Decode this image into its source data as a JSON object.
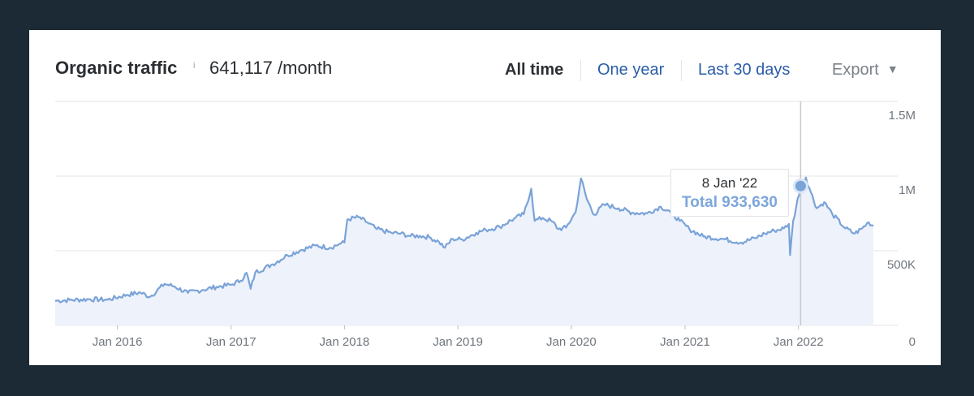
{
  "header": {
    "title": "Organic traffic",
    "info_mark": "i",
    "metric_value": "641,117 /month"
  },
  "ranges": [
    {
      "label": "All time",
      "active": true
    },
    {
      "label": "One year",
      "active": false
    },
    {
      "label": "Last 30 days",
      "active": false
    }
  ],
  "export": {
    "label": "Export",
    "icon": "caret-down-icon"
  },
  "tooltip": {
    "date": "8 Jan '22",
    "total": "Total 933,630"
  },
  "colors": {
    "line": "#7aa3d8",
    "area": "#eef2fb",
    "grid": "#e3e6ea",
    "crosshair": "#c5cad1",
    "axis_text": "#6f767d",
    "link": "#2a5da8"
  },
  "chart_data": {
    "type": "area",
    "title": "Organic traffic",
    "x_type": "date",
    "x_ticks": [
      "Jan 2016",
      "Jan 2017",
      "Jan 2018",
      "Jan 2019",
      "Jan 2020",
      "Jan 2021",
      "Jan 2022"
    ],
    "y_ticks": [
      "0",
      "500K",
      "1M",
      "1.5M"
    ],
    "ylim": [
      0,
      1500000
    ],
    "y_axis_side": "right",
    "grid": true,
    "highlight": {
      "date": "2022-01-08",
      "value": 933630
    },
    "series": [
      {
        "points": [
          [
            "2015-06-15",
            165000
          ],
          [
            "2015-08-01",
            170000
          ],
          [
            "2015-10-01",
            175000
          ],
          [
            "2015-12-01",
            172000
          ],
          [
            "2016-02-01",
            205000
          ],
          [
            "2016-03-15",
            220000
          ],
          [
            "2016-04-15",
            192000
          ],
          [
            "2016-06-01",
            278000
          ],
          [
            "2016-07-01",
            262000
          ],
          [
            "2016-08-15",
            218000
          ],
          [
            "2016-10-01",
            238000
          ],
          [
            "2016-11-15",
            258000
          ],
          [
            "2017-01-01",
            272000
          ],
          [
            "2017-02-01",
            300000
          ],
          [
            "2017-02-20",
            352000
          ],
          [
            "2017-03-05",
            245000
          ],
          [
            "2017-03-20",
            355000
          ],
          [
            "2017-05-15",
            410000
          ],
          [
            "2017-07-01",
            470000
          ],
          [
            "2017-08-15",
            505000
          ],
          [
            "2017-10-01",
            535000
          ],
          [
            "2017-11-15",
            520000
          ],
          [
            "2017-12-15",
            545000
          ],
          [
            "2018-01-01",
            555000
          ],
          [
            "2018-01-10",
            710000
          ],
          [
            "2018-02-15",
            725000
          ],
          [
            "2018-03-15",
            690000
          ],
          [
            "2018-04-15",
            645000
          ],
          [
            "2018-06-01",
            620000
          ],
          [
            "2018-07-01",
            615000
          ],
          [
            "2018-08-01",
            598000
          ],
          [
            "2018-09-01",
            600000
          ],
          [
            "2018-10-01",
            590000
          ],
          [
            "2018-11-01",
            560000
          ],
          [
            "2018-11-20",
            520000
          ],
          [
            "2018-12-15",
            580000
          ],
          [
            "2019-01-15",
            575000
          ],
          [
            "2019-03-01",
            620000
          ],
          [
            "2019-04-01",
            640000
          ],
          [
            "2019-05-15",
            660000
          ],
          [
            "2019-07-01",
            715000
          ],
          [
            "2019-08-01",
            745000
          ],
          [
            "2019-08-25",
            915000
          ],
          [
            "2019-09-05",
            700000
          ],
          [
            "2019-10-01",
            720000
          ],
          [
            "2019-11-01",
            695000
          ],
          [
            "2019-11-20",
            645000
          ],
          [
            "2019-12-15",
            655000
          ],
          [
            "2020-01-15",
            760000
          ],
          [
            "2020-02-01",
            985000
          ],
          [
            "2020-02-20",
            845000
          ],
          [
            "2020-03-15",
            740000
          ],
          [
            "2020-04-15",
            810000
          ],
          [
            "2020-06-01",
            785000
          ],
          [
            "2020-07-15",
            755000
          ],
          [
            "2020-09-01",
            750000
          ],
          [
            "2020-10-15",
            795000
          ],
          [
            "2020-11-15",
            760000
          ],
          [
            "2020-12-15",
            700000
          ],
          [
            "2021-01-15",
            645000
          ],
          [
            "2021-03-01",
            595000
          ],
          [
            "2021-05-01",
            580000
          ],
          [
            "2021-07-01",
            555000
          ],
          [
            "2021-08-15",
            585000
          ],
          [
            "2021-09-15",
            615000
          ],
          [
            "2021-10-15",
            635000
          ],
          [
            "2021-11-15",
            650000
          ],
          [
            "2021-12-01",
            680000
          ],
          [
            "2021-12-05",
            470000
          ],
          [
            "2021-12-15",
            700000
          ],
          [
            "2022-01-08",
            933630
          ],
          [
            "2022-01-25",
            990000
          ],
          [
            "2022-02-10",
            890000
          ],
          [
            "2022-03-01",
            785000
          ],
          [
            "2022-03-25",
            825000
          ],
          [
            "2022-04-20",
            745000
          ],
          [
            "2022-06-01",
            650000
          ],
          [
            "2022-07-01",
            615000
          ],
          [
            "2022-07-25",
            650000
          ],
          [
            "2022-08-15",
            690000
          ],
          [
            "2022-08-30",
            665000
          ]
        ]
      }
    ]
  }
}
